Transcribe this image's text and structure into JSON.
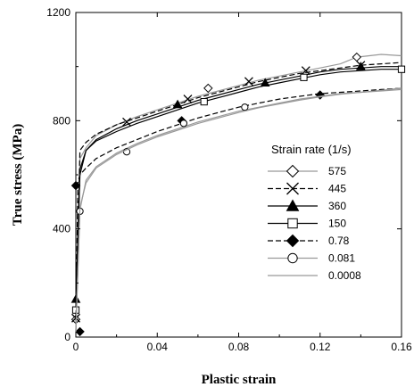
{
  "chart_data": {
    "type": "line",
    "title": "",
    "xlabel": "Plastic strain",
    "ylabel": "True stress (MPa)",
    "xlim": [
      0,
      0.16
    ],
    "ylim": [
      0,
      1200
    ],
    "xticks": [
      0,
      0.04,
      0.08,
      0.12,
      0.16
    ],
    "yticks": [
      0,
      400,
      800,
      1200
    ],
    "xtick_labels": [
      "0",
      "0.04",
      "0.08",
      "0.12",
      "0.16"
    ],
    "ytick_labels": [
      "0",
      "400",
      "800",
      "1200"
    ],
    "grid": false,
    "legend": {
      "title": "Strain rate (1/s)",
      "placement": "right"
    },
    "series": [
      {
        "name": "575",
        "marker": "diamond-open",
        "line": "solid-gray",
        "x": [
          0,
          0.002,
          0.005,
          0.01,
          0.02,
          0.03,
          0.04,
          0.05,
          0.06,
          0.07,
          0.08,
          0.09,
          0.1,
          0.11,
          0.12,
          0.13,
          0.138,
          0.15,
          0.16
        ],
        "y": [
          60,
          660,
          700,
          745,
          785,
          815,
          840,
          865,
          890,
          910,
          930,
          950,
          965,
          980,
          995,
          1010,
          1035,
          1045,
          1040
        ],
        "marker_x": [
          0,
          0.065,
          0.138
        ],
        "marker_y": [
          65,
          920,
          1035
        ]
      },
      {
        "name": "445",
        "marker": "x",
        "line": "dashed",
        "x": [
          0,
          0.002,
          0.005,
          0.01,
          0.02,
          0.03,
          0.04,
          0.05,
          0.06,
          0.07,
          0.08,
          0.09,
          0.1,
          0.11,
          0.12,
          0.13,
          0.14,
          0.15,
          0.16
        ],
        "y": [
          70,
          690,
          720,
          750,
          785,
          810,
          835,
          860,
          885,
          905,
          925,
          945,
          960,
          975,
          985,
          995,
          1005,
          1010,
          1015
        ],
        "marker_x": [
          0,
          0.025,
          0.055,
          0.085,
          0.113,
          0.14
        ],
        "marker_y": [
          70,
          795,
          880,
          945,
          985,
          1005
        ]
      },
      {
        "name": "360",
        "marker": "triangle-filled",
        "line": "solid",
        "x": [
          0,
          0.002,
          0.005,
          0.01,
          0.02,
          0.03,
          0.04,
          0.05,
          0.06,
          0.07,
          0.08,
          0.09,
          0.1,
          0.11,
          0.12,
          0.13,
          0.14,
          0.15,
          0.16
        ],
        "y": [
          130,
          600,
          690,
          730,
          770,
          800,
          825,
          850,
          875,
          895,
          915,
          935,
          950,
          965,
          980,
          990,
          995,
          1000,
          1000
        ],
        "marker_x": [
          0,
          0.05,
          0.093,
          0.14
        ],
        "marker_y": [
          140,
          860,
          940,
          1000
        ]
      },
      {
        "name": "150",
        "marker": "square-open",
        "line": "solid",
        "x": [
          0,
          0.002,
          0.005,
          0.01,
          0.02,
          0.03,
          0.04,
          0.05,
          0.06,
          0.07,
          0.08,
          0.09,
          0.1,
          0.11,
          0.12,
          0.13,
          0.14,
          0.15,
          0.16
        ],
        "y": [
          100,
          620,
          690,
          725,
          760,
          790,
          815,
          840,
          865,
          885,
          905,
          925,
          940,
          955,
          970,
          980,
          985,
          990,
          990
        ],
        "marker_x": [
          0,
          0.063,
          0.112,
          0.16
        ],
        "marker_y": [
          100,
          870,
          960,
          990
        ]
      },
      {
        "name": "0.78",
        "marker": "diamond-filled",
        "line": "dashed",
        "x": [
          0,
          0.001,
          0.002,
          0.005,
          0.01,
          0.02,
          0.03,
          0.04,
          0.05,
          0.06,
          0.07,
          0.08,
          0.09,
          0.1,
          0.11,
          0.12,
          0.13,
          0.14,
          0.15,
          0.16
        ],
        "y": [
          20,
          570,
          600,
          625,
          660,
          700,
          730,
          760,
          785,
          810,
          830,
          850,
          865,
          880,
          890,
          900,
          905,
          910,
          915,
          920
        ],
        "marker_x": [
          0.002,
          0,
          0.052,
          0.12
        ],
        "marker_y": [
          20,
          560,
          800,
          895
        ]
      },
      {
        "name": "0.081",
        "marker": "circle-open",
        "line": "solid-gray",
        "x": [
          0,
          0.002,
          0.005,
          0.01,
          0.02,
          0.03,
          0.04,
          0.05,
          0.06,
          0.07,
          0.08,
          0.09,
          0.1,
          0.11,
          0.12,
          0.13,
          0.14,
          0.15,
          0.16
        ],
        "y": [
          20,
          470,
          580,
          630,
          680,
          715,
          745,
          770,
          795,
          815,
          835,
          850,
          865,
          880,
          890,
          900,
          905,
          910,
          915
        ],
        "marker_x": [
          0.002,
          0.025,
          0.053,
          0.083
        ],
        "marker_y": [
          465,
          685,
          790,
          850
        ]
      },
      {
        "name": "0.0008",
        "marker": "none",
        "line": "solid-gray",
        "x": [
          0,
          0.002,
          0.005,
          0.01,
          0.02,
          0.03,
          0.04,
          0.05,
          0.06,
          0.07,
          0.08,
          0.09,
          0.1,
          0.11,
          0.12,
          0.13,
          0.14,
          0.15,
          0.16
        ],
        "y": [
          20,
          480,
          570,
          625,
          675,
          710,
          740,
          765,
          790,
          810,
          830,
          848,
          862,
          876,
          888,
          898,
          905,
          912,
          920
        ],
        "marker_x": [],
        "marker_y": []
      }
    ]
  }
}
